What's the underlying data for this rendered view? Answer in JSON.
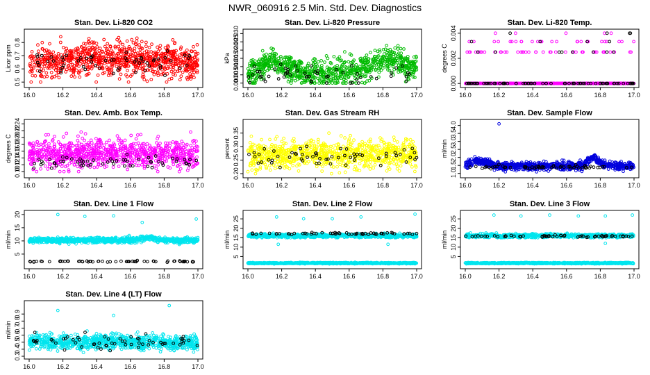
{
  "figure": {
    "title": "NWR_060916  2.5 Min. Std. Dev. Diagnostics"
  },
  "chart_data": [
    {
      "type": "scatter",
      "title": "Stan. Dev. Li-820 CO2",
      "ylabel": "Licor ppm",
      "xlim": [
        16.0,
        17.0
      ],
      "xticks": [
        "16.0",
        "16.2",
        "16.4",
        "16.6",
        "16.8",
        "17.0"
      ],
      "ylim": [
        0.48,
        0.88
      ],
      "yticks": [
        {
          "v": 0.5,
          "label": "0.5"
        },
        {
          "v": 0.6,
          "label": "0.6"
        },
        {
          "v": 0.7,
          "label": "0.7"
        },
        {
          "v": 0.8,
          "label": "0.8"
        }
      ],
      "series": [
        {
          "color": "#ff0000",
          "n": 900,
          "dist": {
            "base": 0.64,
            "spread": 0.06,
            "skew": 0.02,
            "min": 0.5,
            "max": 0.86,
            "hump": 0.03
          }
        },
        {
          "color": "#000000",
          "n": 60,
          "dist": {
            "base": 0.65,
            "spread": 0.04,
            "min": 0.55,
            "max": 0.78
          }
        }
      ]
    },
    {
      "type": "scatter",
      "title": "Stan. Dev. Li-820 Pressure",
      "ylabel": "kPa",
      "xlim": [
        16.0,
        17.0
      ],
      "xticks": [
        "16.0",
        "16.2",
        "16.4",
        "16.6",
        "16.8",
        "17.0"
      ],
      "ylim": [
        -0.001,
        0.031
      ],
      "yticks": [
        {
          "v": 0.0,
          "label": "0.000"
        },
        {
          "v": 0.005,
          "label": "0.005"
        },
        {
          "v": 0.01,
          "label": "0.010"
        },
        {
          "v": 0.015,
          "label": "0.015"
        },
        {
          "v": 0.02,
          "label": "0.020"
        },
        {
          "v": 0.025,
          "label": "0.025"
        },
        {
          "v": 0.03,
          "label": "0.030"
        }
      ],
      "series": [
        {
          "color": "#00bb00",
          "n": 900,
          "dist": {
            "base": 0.006,
            "spread": 0.004,
            "min": 0.0,
            "max": 0.03,
            "bump": [
              {
                "c": 16.15,
                "w": 0.08,
                "h": 0.008
              },
              {
                "c": 16.82,
                "w": 0.14,
                "h": 0.008
              }
            ]
          }
        },
        {
          "color": "#000000",
          "n": 55,
          "dist": {
            "base": 0.005,
            "spread": 0.003,
            "min": 0.0,
            "max": 0.015
          }
        }
      ]
    },
    {
      "type": "scatter",
      "title": "Stan. Dev. Li-820 Temp.",
      "ylabel": "degrees C",
      "xlim": [
        16.0,
        17.0
      ],
      "xticks": [
        "16.0",
        "16.2",
        "16.4",
        "16.6",
        "16.8",
        "17.0"
      ],
      "ylim": [
        -0.0001,
        0.0041
      ],
      "yticks": [
        {
          "v": 0.0,
          "label": "0.000"
        },
        {
          "v": 0.002,
          "label": "0.002"
        },
        {
          "v": 0.004,
          "label": "0.004"
        }
      ],
      "series": [
        {
          "color": "#ff00ff",
          "discrete": [
            0.0,
            0.0025,
            0.00333,
            0.004
          ],
          "weights": [
            0.88,
            0.08,
            0.03,
            0.01
          ],
          "n": 700
        },
        {
          "color": "#000000",
          "discrete": [
            0.0,
            0.0025,
            0.00333,
            0.004
          ],
          "weights": [
            0.8,
            0.12,
            0.05,
            0.03
          ],
          "n": 90
        }
      ]
    },
    {
      "type": "scatter",
      "title": "Stan. Dev. Amb. Box Temp.",
      "ylabel": "degrees C",
      "xlim": [
        16.0,
        17.0
      ],
      "xticks": [
        "16.0",
        "16.2",
        "16.4",
        "16.6",
        "16.8",
        "17.0"
      ],
      "ylim": [
        0.09,
        0.245
      ],
      "yticks": [
        {
          "v": 0.1,
          "label": "0.10"
        },
        {
          "v": 0.12,
          "label": "0.12"
        },
        {
          "v": 0.14,
          "label": "0.14"
        },
        {
          "v": 0.16,
          "label": "0.16"
        },
        {
          "v": 0.18,
          "label": "0.18"
        },
        {
          "v": 0.2,
          "label": "0.20"
        },
        {
          "v": 0.22,
          "label": "0.22"
        },
        {
          "v": 0.24,
          "label": "0.24"
        }
      ],
      "series": [
        {
          "color": "#ff00ff",
          "n": 900,
          "dist": {
            "base": 0.15,
            "spread": 0.02,
            "skew": 0.01,
            "min": 0.1,
            "max": 0.24
          }
        },
        {
          "color": "#000000",
          "n": 60,
          "dist": {
            "base": 0.128,
            "spread": 0.008,
            "min": 0.11,
            "max": 0.15
          }
        }
      ]
    },
    {
      "type": "scatter",
      "title": "Stan. Dev. Gas Stream RH",
      "ylabel": "percent",
      "xlim": [
        16.0,
        17.0
      ],
      "xticks": [
        "16.0",
        "16.2",
        "16.4",
        "16.6",
        "16.8",
        "17.0"
      ],
      "ylim": [
        0.195,
        0.39
      ],
      "yticks": [
        {
          "v": 0.2,
          "label": "0.20"
        },
        {
          "v": 0.25,
          "label": "0.25"
        },
        {
          "v": 0.3,
          "label": "0.30"
        },
        {
          "v": 0.35,
          "label": "0.35"
        }
      ],
      "series": [
        {
          "color": "#ffff00",
          "n": 900,
          "dist": {
            "base": 0.27,
            "spread": 0.025,
            "min": 0.2,
            "max": 0.38
          }
        },
        {
          "color": "#000000",
          "n": 60,
          "dist": {
            "base": 0.265,
            "spread": 0.02,
            "min": 0.21,
            "max": 0.32
          }
        }
      ]
    },
    {
      "type": "scatter",
      "title": "Stan. Dev. Sample Flow",
      "ylabel": "ml/min",
      "xlim": [
        16.0,
        17.0
      ],
      "xticks": [
        "16.0",
        "16.2",
        "16.4",
        "16.6",
        "16.8",
        "17.0"
      ],
      "ylim": [
        0.9,
        4.2
      ],
      "yticks": [
        {
          "v": 1.0,
          "label": "1.0"
        },
        {
          "v": 1.5,
          "label": "1.5"
        },
        {
          "v": 2.0,
          "label": "2.0"
        },
        {
          "v": 2.5,
          "label": "2.5"
        },
        {
          "v": 3.0,
          "label": "3.0"
        },
        {
          "v": 3.5,
          "label": "3.5"
        },
        {
          "v": 4.0,
          "label": "4.0"
        }
      ],
      "series": [
        {
          "color": "#0000dd",
          "n": 900,
          "dist": {
            "base": 1.45,
            "spread": 0.12,
            "min": 1.1,
            "max": 3.0,
            "bump": [
              {
                "c": 16.08,
                "w": 0.07,
                "h": 0.35
              },
              {
                "c": 16.76,
                "w": 0.05,
                "h": 0.5
              }
            ]
          },
          "outliers": [
            [
              16.2,
              4.1
            ]
          ]
        },
        {
          "color": "#000000",
          "n": 60,
          "dist": {
            "base": 1.4,
            "spread": 0.06,
            "min": 1.2,
            "max": 1.7
          }
        }
      ]
    },
    {
      "type": "scatter",
      "title": "Stan. Dev. Line 1 Flow",
      "ylabel": "ml/min",
      "xlim": [
        16.0,
        17.0
      ],
      "xticks": [
        "16.0",
        "16.2",
        "16.4",
        "16.6",
        "16.8",
        "17.0"
      ],
      "ylim": [
        0.5,
        20.5
      ],
      "yticks": [
        {
          "v": 5,
          "label": "5"
        },
        {
          "v": 10,
          "label": "10"
        },
        {
          "v": 15,
          "label": "15"
        },
        {
          "v": 20,
          "label": "20"
        }
      ],
      "series": [
        {
          "color": "#00e5ee",
          "n": 900,
          "dist": {
            "base": 10.2,
            "spread": 0.5,
            "min": 8.0,
            "max": 12.5,
            "bump": [
              {
                "c": 16.7,
                "w": 0.06,
                "h": 1.0
              }
            ]
          },
          "outliers": [
            [
              16.17,
              20.0
            ],
            [
              16.33,
              19.3
            ],
            [
              16.5,
              19.5
            ],
            [
              16.67,
              17.0
            ],
            [
              16.99,
              18.3
            ]
          ]
        },
        {
          "color": "#000000",
          "n": 60,
          "dist": {
            "base": 2.2,
            "spread": 0.1,
            "min": 1.9,
            "max": 2.6
          }
        }
      ]
    },
    {
      "type": "scatter",
      "title": "Stan. Dev. Line 2 Flow",
      "ylabel": "ml/min",
      "xlim": [
        16.0,
        17.0
      ],
      "xticks": [
        "16.0",
        "16.2",
        "16.4",
        "16.6",
        "16.8",
        "17.0"
      ],
      "ylim": [
        0.0,
        28.0
      ],
      "yticks": [
        {
          "v": 5,
          "label": "5"
        },
        {
          "v": 10,
          "label": "10"
        },
        {
          "v": 15,
          "label": "15"
        },
        {
          "v": 20,
          "label": "20"
        },
        {
          "v": 25,
          "label": "25"
        }
      ],
      "series": [
        {
          "color": "#00e5ee",
          "n": 900,
          "dist": {
            "base": 1.5,
            "spread": 0.15,
            "min": 1.0,
            "max": 2.0
          }
        },
        {
          "color": "#00e5ee",
          "n": 700,
          "dist": {
            "base": 16.0,
            "spread": 0.5,
            "min": 15.0,
            "max": 17.5
          },
          "outliers": [
            [
              16.17,
              26.0
            ],
            [
              16.33,
              25.0
            ],
            [
              16.5,
              25.0
            ],
            [
              16.67,
              26.0
            ],
            [
              16.99,
              27.5
            ],
            [
              16.18,
              11.5
            ],
            [
              16.83,
              11.5
            ]
          ]
        },
        {
          "color": "#000000",
          "n": 60,
          "dist": {
            "base": 17.2,
            "spread": 0.25,
            "min": 16.6,
            "max": 18.0
          }
        }
      ]
    },
    {
      "type": "scatter",
      "title": "Stan. Dev. Line 3 Flow",
      "ylabel": "ml/min",
      "xlim": [
        16.0,
        17.0
      ],
      "xticks": [
        "16.0",
        "16.2",
        "16.4",
        "16.6",
        "16.8",
        "17.0"
      ],
      "ylim": [
        0.0,
        28.0
      ],
      "yticks": [
        {
          "v": 5,
          "label": "5"
        },
        {
          "v": 10,
          "label": "10"
        },
        {
          "v": 15,
          "label": "15"
        },
        {
          "v": 20,
          "label": "20"
        },
        {
          "v": 25,
          "label": "25"
        }
      ],
      "series": [
        {
          "color": "#00e5ee",
          "n": 900,
          "dist": {
            "base": 1.5,
            "spread": 0.15,
            "min": 1.0,
            "max": 2.0
          }
        },
        {
          "color": "#00e5ee",
          "n": 700,
          "dist": {
            "base": 16.0,
            "spread": 0.5,
            "min": 15.0,
            "max": 17.5
          },
          "outliers": [
            [
              16.17,
              27.0
            ],
            [
              16.33,
              26.5
            ],
            [
              16.5,
              27.0
            ],
            [
              16.67,
              26.5
            ],
            [
              16.83,
              26.5
            ],
            [
              16.99,
              27.0
            ],
            [
              16.83,
              12.0
            ]
          ]
        },
        {
          "color": "#000000",
          "n": 60,
          "dist": {
            "base": 15.8,
            "spread": 0.3,
            "min": 15.0,
            "max": 16.7
          }
        }
      ]
    },
    {
      "type": "scatter",
      "title": "Stan. Dev. Line 4 (LT) Flow",
      "ylabel": "ml/min",
      "xlim": [
        16.0,
        17.0
      ],
      "xticks": [
        "16.0",
        "16.2",
        "16.4",
        "16.6",
        "16.8",
        "17.0"
      ],
      "ylim": [
        0.3,
        1.05
      ],
      "yticks": [
        {
          "v": 0.3,
          "label": "0.3"
        },
        {
          "v": 0.4,
          "label": "0.4"
        },
        {
          "v": 0.5,
          "label": "0.5"
        },
        {
          "v": 0.6,
          "label": "0.6"
        },
        {
          "v": 0.7,
          "label": "0.7"
        },
        {
          "v": 0.8,
          "label": "0.8"
        },
        {
          "v": 0.9,
          "label": "0.9"
        }
      ],
      "series": [
        {
          "color": "#00e5ee",
          "n": 900,
          "dist": {
            "base": 0.5,
            "spread": 0.05,
            "min": 0.33,
            "max": 0.7
          },
          "outliers": [
            [
              16.17,
              0.95
            ],
            [
              16.5,
              0.88
            ],
            [
              16.83,
              1.02
            ]
          ]
        },
        {
          "color": "#000000",
          "n": 60,
          "dist": {
            "base": 0.5,
            "spread": 0.05,
            "min": 0.35,
            "max": 0.64
          }
        }
      ]
    }
  ]
}
